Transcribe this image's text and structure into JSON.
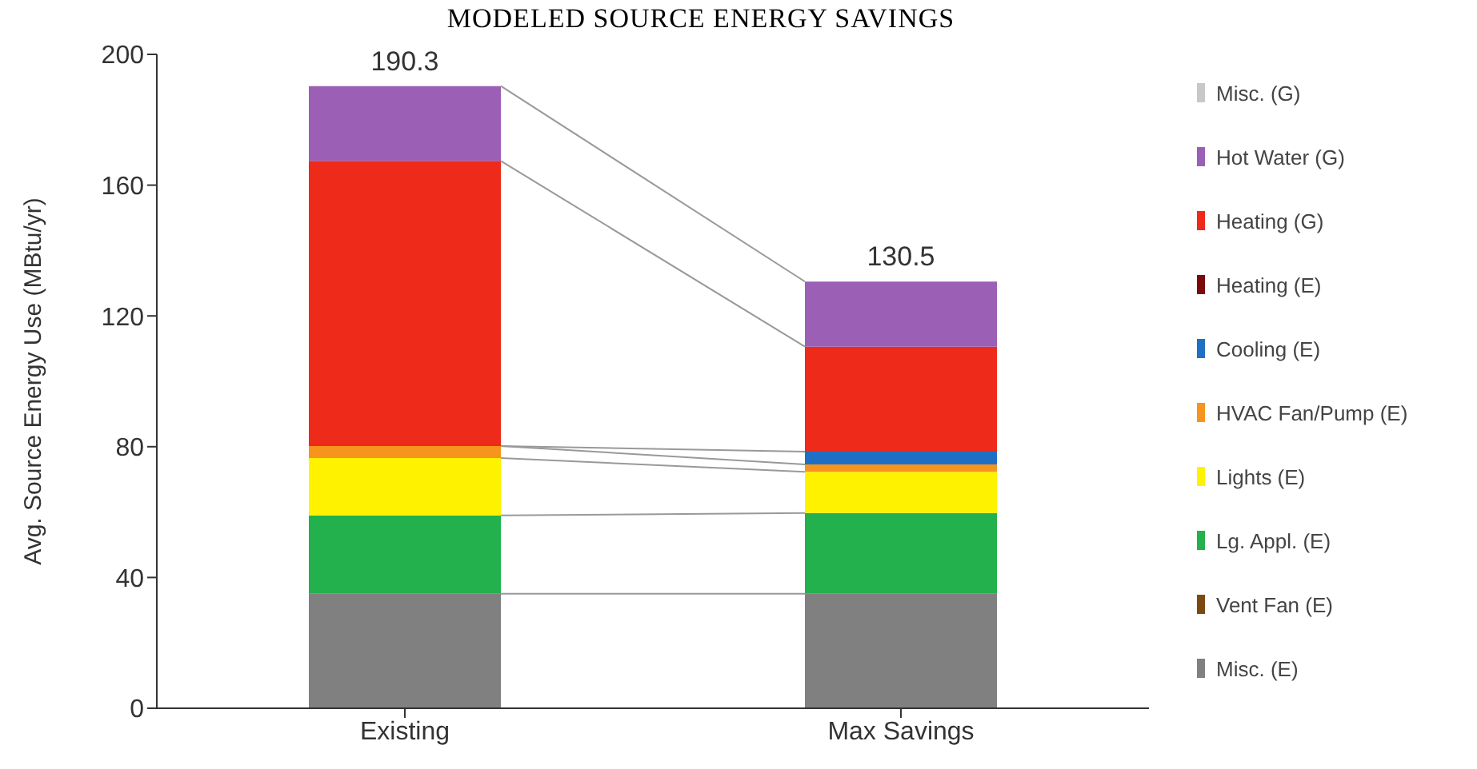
{
  "chart_data": {
    "type": "bar",
    "title": "MODELED SOURCE ENERGY SAVINGS",
    "ylabel": "Avg. Source Energy Use (MBtu/yr)",
    "categories": [
      "Existing",
      "Max Savings"
    ],
    "stacked": true,
    "ylim": [
      0,
      200
    ],
    "yticks": [
      0,
      40,
      80,
      120,
      160,
      200
    ],
    "legend": "right",
    "totals": [
      "190.3",
      "130.5"
    ],
    "series": [
      {
        "name": "Misc. (E)",
        "color": "#808080",
        "values": [
          35,
          35
        ]
      },
      {
        "name": "Vent Fan (E)",
        "color": "#7b4a12",
        "values": [
          0,
          0
        ]
      },
      {
        "name": "Lg. Appl. (E)",
        "color": "#22b14c",
        "values": [
          24,
          24.7
        ]
      },
      {
        "name": "Lights (E)",
        "color": "#fff200",
        "values": [
          17.5,
          12.6
        ]
      },
      {
        "name": "HVAC Fan/Pump (E)",
        "color": "#f7941d",
        "values": [
          3.7,
          2.3
        ]
      },
      {
        "name": "Cooling (E)",
        "color": "#1f6fc5",
        "values": [
          0,
          3.9
        ]
      },
      {
        "name": "Heating (E)",
        "color": "#7b0a0a",
        "values": [
          0,
          0
        ]
      },
      {
        "name": "Heating (G)",
        "color": "#ee2a1b",
        "values": [
          87.2,
          32.1
        ]
      },
      {
        "name": "Hot Water (G)",
        "color": "#9b5fb5",
        "values": [
          22.9,
          19.9
        ]
      },
      {
        "name": "Misc. (G)",
        "color": "#c8c8c8",
        "values": [
          0,
          0
        ]
      }
    ]
  }
}
